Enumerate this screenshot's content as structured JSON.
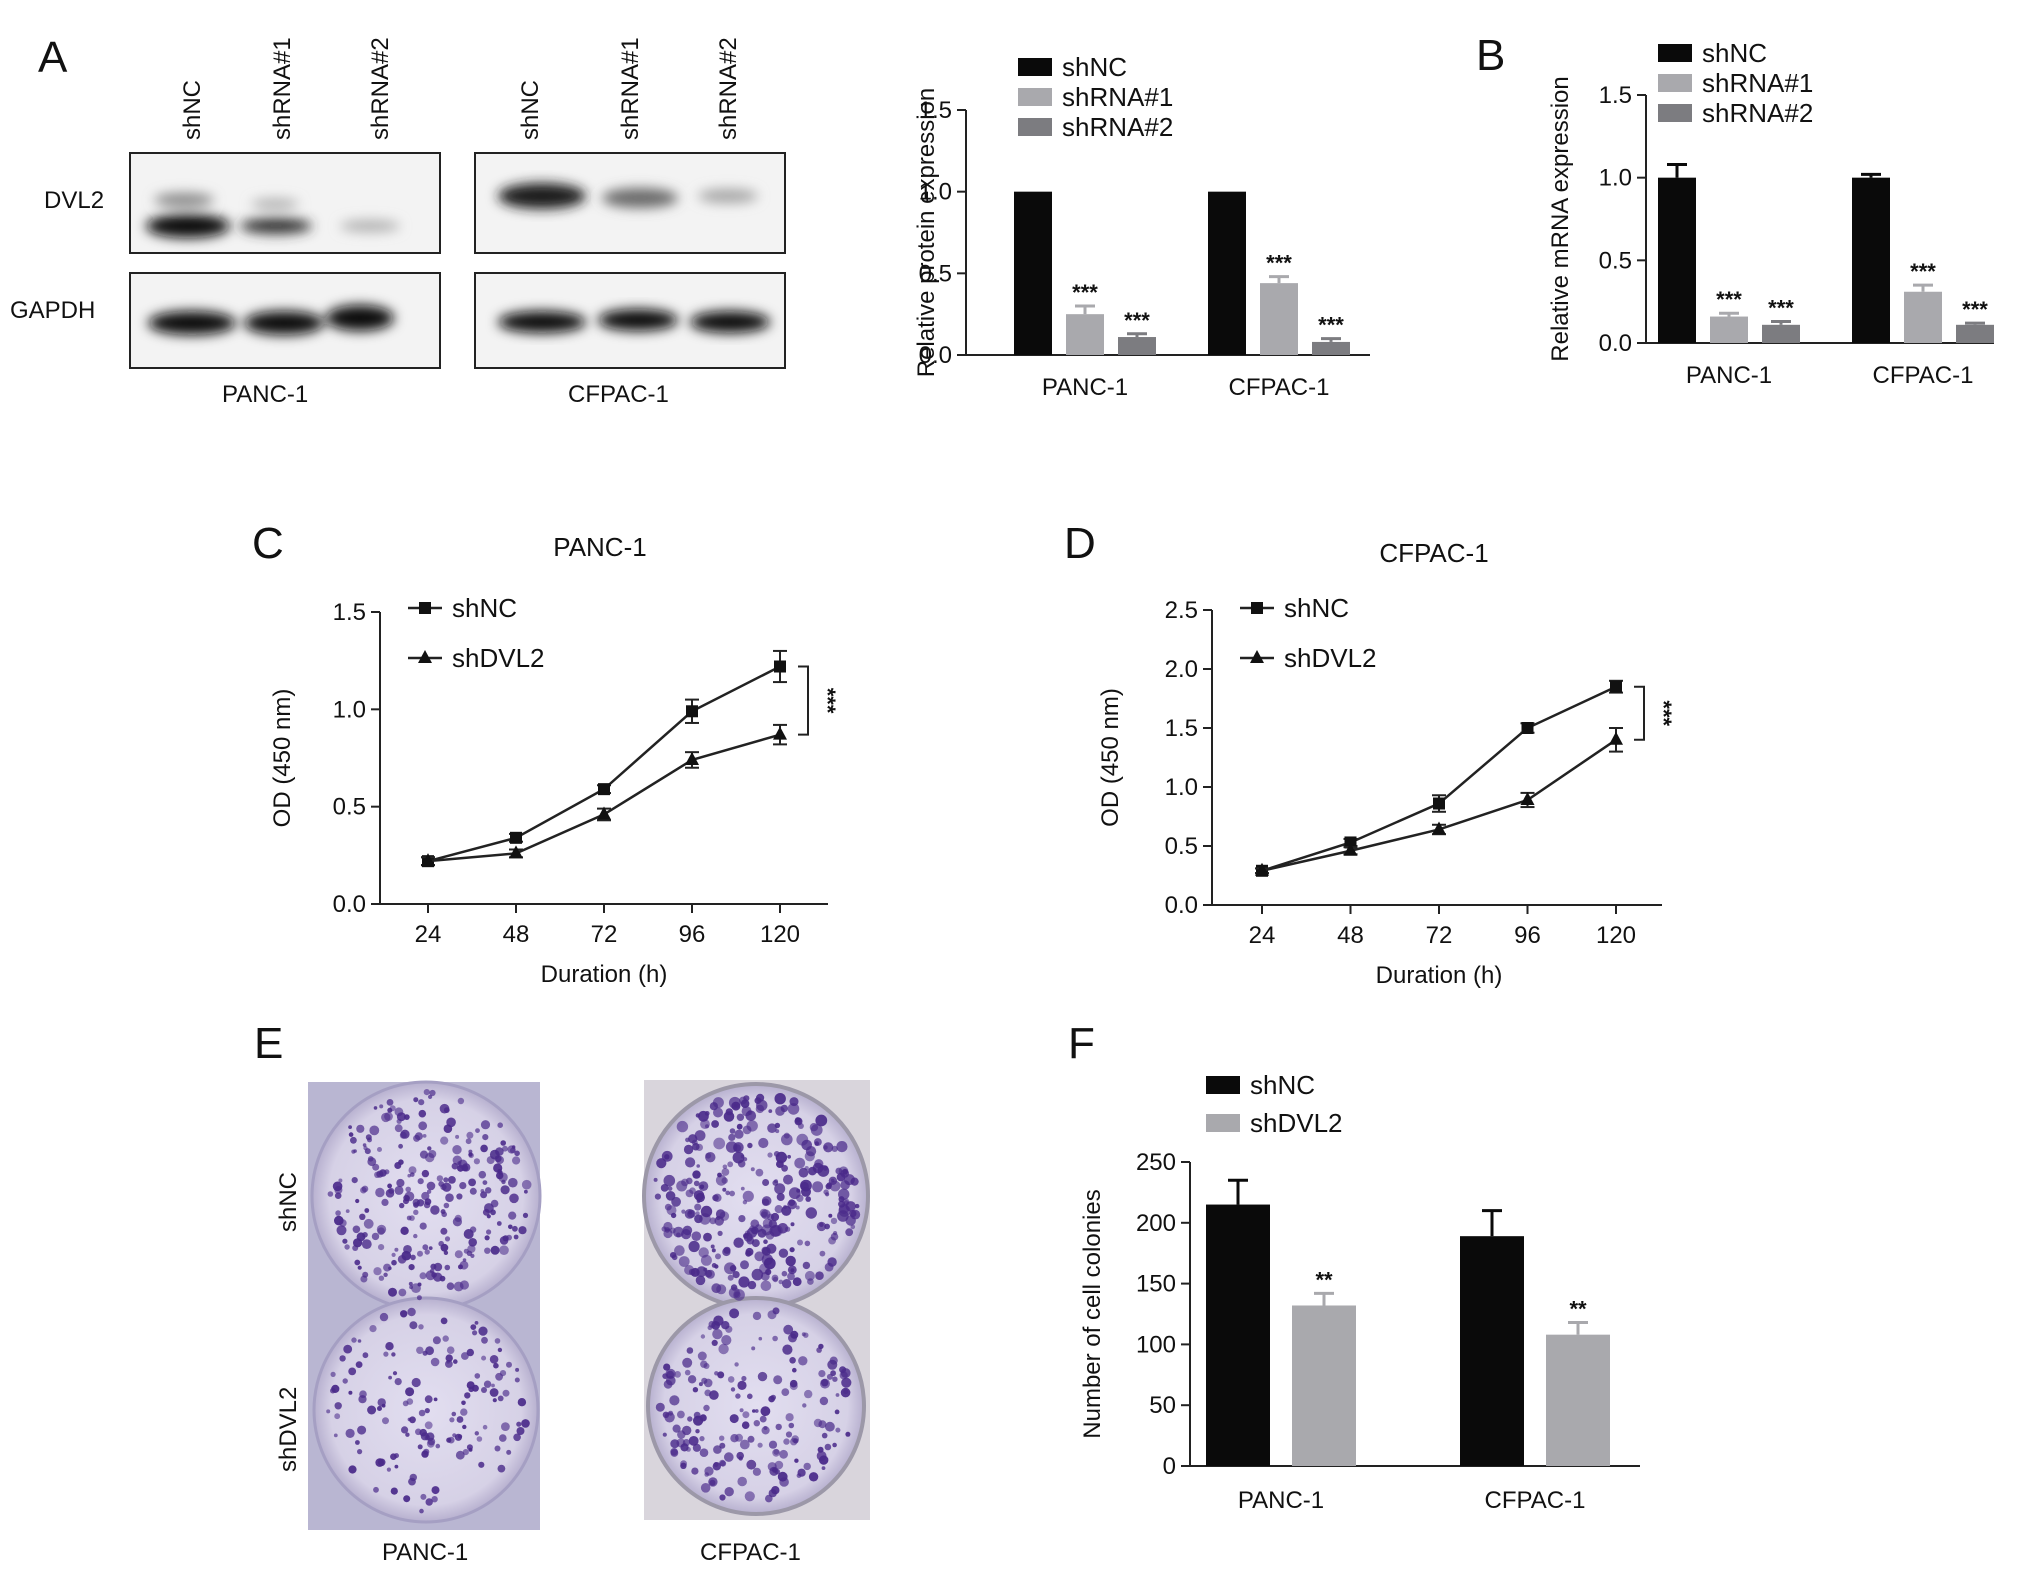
{
  "panels": {
    "A": "A",
    "B": "B",
    "C": "C",
    "D": "D",
    "E": "E",
    "F": "F"
  },
  "western_blot": {
    "lane_labels": [
      "shNC",
      "shRNA#1",
      "shRNA#2"
    ],
    "row_labels": [
      "DVL2",
      "GAPDH"
    ],
    "cell_lines": [
      "PANC-1",
      "CFPAC-1"
    ]
  },
  "colony_images": {
    "row_labels": [
      "shNC",
      "shDVL2"
    ],
    "cell_lines": [
      "PANC-1",
      "CFPAC-1"
    ]
  },
  "colors": {
    "shNC": "#0a0a0a",
    "shRNA#1": "#a9a9ad",
    "shRNA#2": "#7c7c80",
    "shDVL2": "#a9a9ad",
    "plate_bg": "#d8d4e4",
    "colony": "#4a2a8a"
  },
  "chart_data": [
    {
      "id": "A-bar",
      "type": "bar",
      "categories": [
        "PANC-1",
        "CFPAC-1"
      ],
      "series": [
        {
          "name": "shNC",
          "values": [
            1.0,
            1.0
          ],
          "errors": [
            0,
            0
          ],
          "sig": [
            "",
            ""
          ]
        },
        {
          "name": "shRNA#1",
          "values": [
            0.25,
            0.44
          ],
          "errors": [
            0.05,
            0.04
          ],
          "sig": [
            "***",
            "***"
          ]
        },
        {
          "name": "shRNA#2",
          "values": [
            0.11,
            0.08
          ],
          "errors": [
            0.02,
            0.02
          ],
          "sig": [
            "***",
            "***"
          ]
        }
      ],
      "ylabel": "Relative protein expression",
      "ylim": [
        0,
        1.5
      ],
      "yticks": [
        "0.0",
        "0.5",
        "1.0",
        "1.5"
      ],
      "legend": "top-left"
    },
    {
      "id": "B-bar",
      "type": "bar",
      "categories": [
        "PANC-1",
        "CFPAC-1"
      ],
      "series": [
        {
          "name": "shNC",
          "values": [
            1.0,
            1.0
          ],
          "errors": [
            0.08,
            0.02
          ],
          "sig": [
            "",
            ""
          ]
        },
        {
          "name": "shRNA#1",
          "values": [
            0.16,
            0.31
          ],
          "errors": [
            0.02,
            0.04
          ],
          "sig": [
            "***",
            "***"
          ]
        },
        {
          "name": "shRNA#2",
          "values": [
            0.11,
            0.11
          ],
          "errors": [
            0.02,
            0.01
          ],
          "sig": [
            "***",
            "***"
          ]
        }
      ],
      "ylabel": "Relative mRNA expression",
      "ylim": [
        0,
        1.5
      ],
      "yticks": [
        "0.0",
        "0.5",
        "1.0",
        "1.5"
      ],
      "legend": "top-left"
    },
    {
      "id": "C-line",
      "type": "line",
      "title": "PANC-1",
      "x": [
        24,
        48,
        72,
        96,
        120
      ],
      "series": [
        {
          "name": "shNC",
          "marker": "square",
          "values": [
            0.22,
            0.34,
            0.59,
            0.99,
            1.22
          ],
          "errors": [
            0.02,
            0.02,
            0.02,
            0.06,
            0.08
          ]
        },
        {
          "name": "shDVL2",
          "marker": "triangle",
          "values": [
            0.22,
            0.26,
            0.46,
            0.74,
            0.87
          ],
          "errors": [
            0.02,
            0.02,
            0.03,
            0.04,
            0.05
          ]
        }
      ],
      "sig": "***",
      "xlabel": "Duration (h)",
      "ylabel": "OD (450 nm)",
      "ylim": [
        0,
        1.5
      ],
      "yticks": [
        "0.0",
        "0.5",
        "1.0",
        "1.5"
      ],
      "legend": "top-left"
    },
    {
      "id": "D-line",
      "type": "line",
      "title": "CFPAC-1",
      "x": [
        24,
        48,
        72,
        96,
        120
      ],
      "series": [
        {
          "name": "shNC",
          "marker": "square",
          "values": [
            0.29,
            0.53,
            0.86,
            1.5,
            1.85
          ],
          "errors": [
            0.02,
            0.03,
            0.07,
            0.04,
            0.05
          ]
        },
        {
          "name": "shDVL2",
          "marker": "triangle",
          "values": [
            0.29,
            0.46,
            0.64,
            0.89,
            1.4
          ],
          "errors": [
            0.02,
            0.03,
            0.04,
            0.06,
            0.1
          ]
        }
      ],
      "sig": "***",
      "xlabel": "Duration (h)",
      "ylabel": "OD (450 nm)",
      "ylim": [
        0,
        2.5
      ],
      "yticks": [
        "0.0",
        "0.5",
        "1.0",
        "1.5",
        "2.0",
        "2.5"
      ],
      "legend": "top-left"
    },
    {
      "id": "F-bar",
      "type": "bar",
      "categories": [
        "PANC-1",
        "CFPAC-1"
      ],
      "series": [
        {
          "name": "shNC",
          "values": [
            215,
            189
          ],
          "errors": [
            20,
            21
          ],
          "sig": [
            "",
            ""
          ]
        },
        {
          "name": "shDVL2",
          "values": [
            132,
            108
          ],
          "errors": [
            10,
            10
          ],
          "sig": [
            "**",
            "**"
          ]
        }
      ],
      "ylabel": "Number of cell colonies",
      "ylim": [
        0,
        250
      ],
      "yticks": [
        "0",
        "50",
        "100",
        "150",
        "200",
        "250"
      ],
      "legend": "top-left"
    }
  ]
}
